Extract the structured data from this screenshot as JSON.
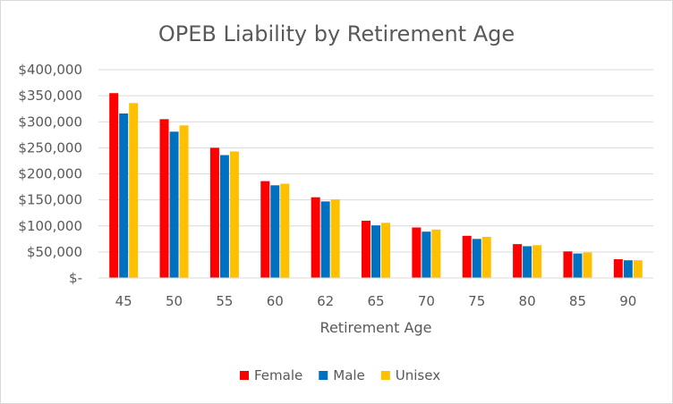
{
  "chart_data": {
    "type": "bar",
    "title": "OPEB Liability by Retirement Age",
    "xlabel": "Retirement Age",
    "ylabel": "",
    "ylim": [
      0,
      400000
    ],
    "ytick_values": [
      0,
      50000,
      100000,
      150000,
      200000,
      250000,
      300000,
      350000,
      400000
    ],
    "ytick_labels": [
      "$-",
      "$50,000",
      "$100,000",
      "$150,000",
      "$200,000",
      "$250,000",
      "$300,000",
      "$350,000",
      "$400,000"
    ],
    "grid": true,
    "legend": "bottom",
    "categories": [
      "45",
      "50",
      "55",
      "60",
      "62",
      "65",
      "70",
      "75",
      "80",
      "85",
      "90"
    ],
    "series": [
      {
        "name": "Female",
        "color": "#ff0000",
        "values": [
          355000,
          305000,
          250000,
          186000,
          155000,
          110000,
          97000,
          81000,
          65000,
          51000,
          36000
        ]
      },
      {
        "name": "Male",
        "color": "#0070c0",
        "values": [
          316000,
          281000,
          236000,
          178000,
          147000,
          101000,
          89000,
          75000,
          61000,
          47000,
          34000
        ]
      },
      {
        "name": "Unisex",
        "color": "#ffc000",
        "values": [
          336000,
          293000,
          243000,
          181000,
          151000,
          106000,
          93000,
          79000,
          63000,
          49000,
          34000
        ]
      }
    ]
  }
}
